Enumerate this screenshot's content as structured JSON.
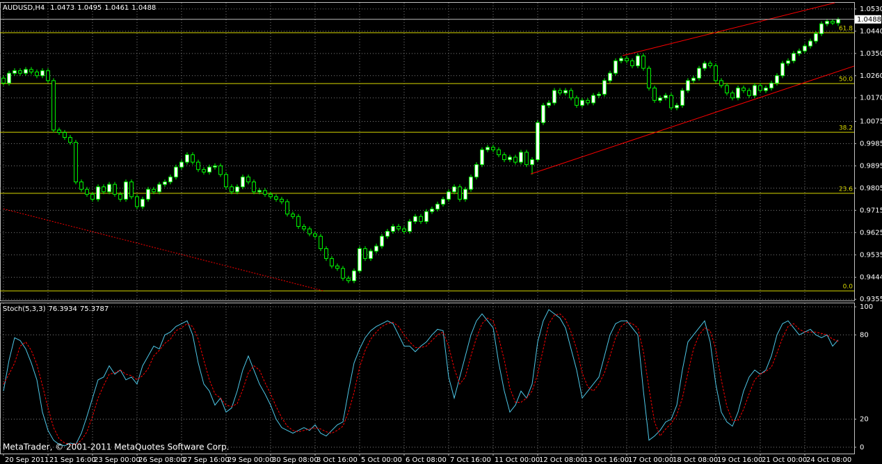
{
  "chart_data": {
    "type": "candlestick",
    "symbol": "AUDUSD,H4",
    "up_color": "#ffffff",
    "down_color": "#000000",
    "wick_color": "#00ff00",
    "grid": true,
    "xlim": [
      -0.625,
      152.875
    ],
    "xticks": [
      {
        "value": 0,
        "label": "20 Sep 2011"
      },
      {
        "value": 8,
        "label": "21 Sep 16:00"
      },
      {
        "value": 16,
        "label": "23 Sep 00:00"
      },
      {
        "value": 24,
        "label": "26 Sep 08:00"
      },
      {
        "value": 32,
        "label": "27 Sep 16:00"
      },
      {
        "value": 40,
        "label": "29 Sep 00:00"
      },
      {
        "value": 48,
        "label": "30 Sep 08:00"
      },
      {
        "value": 56,
        "label": "3 Oct 16:00"
      },
      {
        "value": 64,
        "label": "5 Oct 00:00"
      },
      {
        "value": 72,
        "label": "6 Oct 08:00"
      },
      {
        "value": 80,
        "label": "7 Oct 16:00"
      },
      {
        "value": 88,
        "label": "11 Oct 00:00"
      },
      {
        "value": 96,
        "label": "12 Oct 08:00"
      },
      {
        "value": 104,
        "label": "13 Oct 16:00"
      },
      {
        "value": 112,
        "label": "17 Oct 00:00"
      },
      {
        "value": 120,
        "label": "18 Oct 08:00"
      },
      {
        "value": 128,
        "label": "19 Oct 16:00"
      },
      {
        "value": 136,
        "label": "21 Oct 00:00"
      },
      {
        "value": 144,
        "label": "24 Oct 08:00"
      }
    ],
    "ylim": [
      0.935,
      1.0555
    ],
    "yticks": [
      {
        "value": 1.053,
        "label": "1.0530"
      },
      {
        "value": 1.044,
        "label": "1.0440"
      },
      {
        "value": 1.035,
        "label": "1.0350"
      },
      {
        "value": 1.026,
        "label": "1.0260"
      },
      {
        "value": 1.017,
        "label": "1.0170"
      },
      1.0075,
      0.9985,
      0.9895,
      0.9805,
      0.9715,
      0.9625,
      0.9535,
      0.9444,
      0.9355
    ],
    "ohlc": [
      [
        1.025,
        1.026,
        1.022,
        1.023
      ],
      [
        1.023,
        1.028,
        1.022,
        1.027
      ],
      [
        1.027,
        1.029,
        1.026,
        1.028
      ],
      [
        1.028,
        1.029,
        1.026,
        1.027
      ],
      [
        1.027,
        1.0295,
        1.026,
        1.0285
      ],
      [
        1.0285,
        1.0295,
        1.0265,
        1.0275
      ],
      [
        1.0275,
        1.0285,
        1.025,
        1.026
      ],
      [
        1.026,
        1.029,
        1.025,
        1.028
      ],
      [
        1.028,
        1.029,
        1.023,
        1.024
      ],
      [
        1.024,
        1.025,
        1.003,
        1.004
      ],
      [
        1.004,
        1.005,
        1.002,
        1.003
      ],
      [
        1.003,
        1.004,
        1.0,
        1.001
      ],
      [
        1.001,
        1.002,
        0.998,
        0.999
      ],
      [
        0.999,
        1.0,
        0.982,
        0.983
      ],
      [
        0.983,
        0.984,
        0.979,
        0.98
      ],
      [
        0.98,
        0.981,
        0.977,
        0.978
      ],
      [
        0.978,
        0.979,
        0.975,
        0.976
      ],
      [
        0.976,
        0.982,
        0.975,
        0.981
      ],
      [
        0.981,
        0.982,
        0.978,
        0.979
      ],
      [
        0.979,
        0.983,
        0.978,
        0.982
      ],
      [
        0.982,
        0.983,
        0.977,
        0.978
      ],
      [
        0.978,
        0.979,
        0.975,
        0.976
      ],
      [
        0.976,
        0.984,
        0.975,
        0.983
      ],
      [
        0.983,
        0.984,
        0.976,
        0.977
      ],
      [
        0.977,
        0.978,
        0.972,
        0.973
      ],
      [
        0.973,
        0.977,
        0.972,
        0.976
      ],
      [
        0.976,
        0.981,
        0.975,
        0.98
      ],
      [
        0.98,
        0.981,
        0.978,
        0.979
      ],
      [
        0.979,
        0.983,
        0.978,
        0.982
      ],
      [
        0.982,
        0.984,
        0.981,
        0.983
      ],
      [
        0.983,
        0.986,
        0.982,
        0.985
      ],
      [
        0.985,
        0.99,
        0.984,
        0.989
      ],
      [
        0.989,
        0.992,
        0.988,
        0.991
      ],
      [
        0.991,
        0.995,
        0.99,
        0.994
      ],
      [
        0.994,
        0.995,
        0.99,
        0.991
      ],
      [
        0.991,
        0.992,
        0.987,
        0.988
      ],
      [
        0.988,
        0.989,
        0.986,
        0.987
      ],
      [
        0.987,
        0.99,
        0.986,
        0.989
      ],
      [
        0.989,
        0.9905,
        0.988,
        0.9895
      ],
      [
        0.9895,
        0.9905,
        0.985,
        0.986
      ],
      [
        0.986,
        0.987,
        0.98,
        0.981
      ],
      [
        0.981,
        0.982,
        0.978,
        0.979
      ],
      [
        0.979,
        0.982,
        0.978,
        0.981
      ],
      [
        0.981,
        0.986,
        0.98,
        0.985
      ],
      [
        0.985,
        0.986,
        0.982,
        0.983
      ],
      [
        0.983,
        0.984,
        0.978,
        0.979
      ],
      [
        0.979,
        0.9805,
        0.978,
        0.9795
      ],
      [
        0.9795,
        0.9805,
        0.977,
        0.978
      ],
      [
        0.978,
        0.979,
        0.976,
        0.977
      ],
      [
        0.977,
        0.978,
        0.975,
        0.976
      ],
      [
        0.976,
        0.977,
        0.974,
        0.975
      ],
      [
        0.975,
        0.976,
        0.969,
        0.97
      ],
      [
        0.97,
        0.971,
        0.968,
        0.969
      ],
      [
        0.969,
        0.97,
        0.964,
        0.965
      ],
      [
        0.965,
        0.966,
        0.963,
        0.964
      ],
      [
        0.964,
        0.965,
        0.961,
        0.962
      ],
      [
        0.962,
        0.963,
        0.96,
        0.961
      ],
      [
        0.961,
        0.962,
        0.955,
        0.956
      ],
      [
        0.956,
        0.957,
        0.951,
        0.952
      ],
      [
        0.952,
        0.953,
        0.948,
        0.949
      ],
      [
        0.949,
        0.95,
        0.947,
        0.948
      ],
      [
        0.948,
        0.949,
        0.943,
        0.944
      ],
      [
        0.944,
        0.945,
        0.942,
        0.943
      ],
      [
        0.943,
        0.948,
        0.942,
        0.947
      ],
      [
        0.947,
        0.957,
        0.946,
        0.956
      ],
      [
        0.956,
        0.957,
        0.951,
        0.952
      ],
      [
        0.952,
        0.956,
        0.951,
        0.955
      ],
      [
        0.955,
        0.958,
        0.954,
        0.957
      ],
      [
        0.957,
        0.962,
        0.956,
        0.961
      ],
      [
        0.961,
        0.964,
        0.96,
        0.963
      ],
      [
        0.963,
        0.966,
        0.962,
        0.965
      ],
      [
        0.965,
        0.966,
        0.963,
        0.964
      ],
      [
        0.964,
        0.965,
        0.962,
        0.963
      ],
      [
        0.963,
        0.968,
        0.962,
        0.967
      ],
      [
        0.967,
        0.97,
        0.966,
        0.969
      ],
      [
        0.969,
        0.97,
        0.966,
        0.967
      ],
      [
        0.967,
        0.972,
        0.966,
        0.971
      ],
      [
        0.971,
        0.973,
        0.97,
        0.972
      ],
      [
        0.972,
        0.975,
        0.971,
        0.974
      ],
      [
        0.974,
        0.977,
        0.973,
        0.976
      ],
      [
        0.976,
        0.98,
        0.975,
        0.979
      ],
      [
        0.979,
        0.982,
        0.978,
        0.981
      ],
      [
        0.981,
        0.982,
        0.975,
        0.976
      ],
      [
        0.976,
        0.981,
        0.975,
        0.98
      ],
      [
        0.98,
        0.986,
        0.979,
        0.985
      ],
      [
        0.985,
        0.991,
        0.984,
        0.99
      ],
      [
        0.99,
        0.997,
        0.989,
        0.996
      ],
      [
        0.996,
        0.998,
        0.995,
        0.997
      ],
      [
        0.997,
        0.998,
        0.995,
        0.996
      ],
      [
        0.996,
        0.997,
        0.993,
        0.994
      ],
      [
        0.994,
        0.995,
        0.991,
        0.992
      ],
      [
        0.992,
        0.994,
        0.991,
        0.993
      ],
      [
        0.993,
        0.994,
        0.99,
        0.991
      ],
      [
        0.991,
        0.996,
        0.99,
        0.995
      ],
      [
        0.995,
        0.996,
        0.989,
        0.99
      ],
      [
        0.99,
        0.993,
        0.986,
        0.992
      ],
      [
        0.992,
        1.008,
        0.991,
        1.007
      ],
      [
        1.007,
        1.015,
        1.006,
        1.014
      ],
      [
        1.014,
        1.016,
        1.013,
        1.015
      ],
      [
        1.015,
        1.021,
        1.014,
        1.02
      ],
      [
        1.02,
        1.021,
        1.018,
        1.019
      ],
      [
        1.019,
        1.021,
        1.018,
        1.02
      ],
      [
        1.02,
        1.021,
        1.016,
        1.017
      ],
      [
        1.017,
        1.018,
        1.013,
        1.014
      ],
      [
        1.014,
        1.017,
        1.013,
        1.016
      ],
      [
        1.016,
        1.017,
        1.014,
        1.015
      ],
      [
        1.015,
        1.019,
        1.014,
        1.018
      ],
      [
        1.018,
        1.0195,
        1.017,
        1.0185
      ],
      [
        1.0185,
        1.025,
        1.0175,
        1.024
      ],
      [
        1.024,
        1.028,
        1.023,
        1.027
      ],
      [
        1.027,
        1.033,
        1.026,
        1.032
      ],
      [
        1.032,
        1.034,
        1.031,
        1.033
      ],
      [
        1.033,
        1.034,
        1.031,
        1.032
      ],
      [
        1.032,
        1.033,
        1.029,
        1.03
      ],
      [
        1.03,
        1.035,
        1.029,
        1.034
      ],
      [
        1.034,
        1.035,
        1.028,
        1.029
      ],
      [
        1.029,
        1.03,
        1.02,
        1.021
      ],
      [
        1.021,
        1.022,
        1.015,
        1.016
      ],
      [
        1.016,
        1.018,
        1.015,
        1.017
      ],
      [
        1.017,
        1.019,
        1.016,
        1.018
      ],
      [
        1.018,
        1.019,
        1.012,
        1.013
      ],
      [
        1.013,
        1.015,
        1.012,
        1.014
      ],
      [
        1.014,
        1.021,
        1.013,
        1.02
      ],
      [
        1.02,
        1.025,
        1.019,
        1.024
      ],
      [
        1.024,
        1.026,
        1.023,
        1.025
      ],
      [
        1.025,
        1.03,
        1.024,
        1.029
      ],
      [
        1.029,
        1.032,
        1.028,
        1.031
      ],
      [
        1.031,
        1.032,
        1.029,
        1.03
      ],
      [
        1.03,
        1.031,
        1.023,
        1.024
      ],
      [
        1.024,
        1.025,
        1.021,
        1.022
      ],
      [
        1.022,
        1.023,
        1.018,
        1.019
      ],
      [
        1.019,
        1.02,
        1.016,
        1.017
      ],
      [
        1.017,
        1.022,
        1.016,
        1.021
      ],
      [
        1.021,
        1.022,
        1.019,
        1.02
      ],
      [
        1.02,
        1.021,
        1.017,
        1.018
      ],
      [
        1.018,
        1.023,
        1.017,
        1.022
      ],
      [
        1.022,
        1.023,
        1.019,
        1.02
      ],
      [
        1.02,
        1.022,
        1.019,
        1.021
      ],
      [
        1.021,
        1.024,
        1.02,
        1.023
      ],
      [
        1.023,
        1.027,
        1.022,
        1.026
      ],
      [
        1.026,
        1.032,
        1.025,
        1.031
      ],
      [
        1.031,
        1.033,
        1.03,
        1.032
      ],
      [
        1.032,
        1.036,
        1.031,
        1.035
      ],
      [
        1.035,
        1.037,
        1.034,
        1.036
      ],
      [
        1.036,
        1.039,
        1.035,
        1.038
      ],
      [
        1.038,
        1.041,
        1.037,
        1.04
      ],
      [
        1.04,
        1.044,
        1.039,
        1.043
      ],
      [
        1.043,
        1.048,
        1.042,
        1.047
      ],
      [
        1.047,
        1.049,
        1.046,
        1.048
      ],
      [
        1.048,
        1.049,
        1.0465,
        1.0473
      ],
      [
        1.0473,
        1.0495,
        1.0461,
        1.0488
      ]
    ],
    "fib_color": "#d8d800",
    "fib_levels": [
      {
        "label": "61.8",
        "price": 1.0434
      },
      {
        "label": "50.0",
        "price": 1.0228
      },
      {
        "label": "38.2",
        "price": 1.0031
      },
      {
        "label": "23.6",
        "price": 0.9784
      },
      {
        "label": "0.0",
        "price": 0.9389
      }
    ],
    "trend_lines": [
      {
        "x": [
          111.25,
          149.4
        ],
        "y": [
          1.0341,
          1.0555
        ],
        "color": "#ff0000",
        "dashed": false
      },
      {
        "x": [
          94.75,
          152.875
        ],
        "y": [
          0.9862,
          1.0299
        ],
        "color": "#ff0000",
        "dashed": false
      },
      {
        "x": [
          0,
          57.5
        ],
        "y": [
          0.9721,
          0.9389
        ],
        "color": "#ff0000",
        "dashed": true
      }
    ],
    "indicator": {
      "type": "line",
      "title": "Stoch(5,3,3)",
      "ylim": [
        -4.5,
        102.5
      ],
      "yticks": [
        0,
        20,
        80,
        100
      ],
      "series": [
        {
          "color": "#4ec8e8",
          "dashed": false,
          "values": [
            40,
            62,
            78,
            76,
            70,
            60,
            48,
            25,
            12,
            5,
            2,
            1,
            3,
            2,
            10,
            22,
            35,
            48,
            50,
            58,
            52,
            55,
            48,
            50,
            45,
            58,
            65,
            72,
            70,
            80,
            82,
            86,
            88,
            90,
            80,
            60,
            45,
            40,
            30,
            35,
            25,
            28,
            40,
            55,
            65,
            55,
            45,
            38,
            30,
            20,
            14,
            12,
            10,
            12,
            14,
            12,
            16,
            10,
            8,
            12,
            16,
            18,
            40,
            60,
            70,
            78,
            83,
            86,
            88,
            90,
            88,
            80,
            72,
            72,
            68,
            72,
            75,
            80,
            84,
            83,
            50,
            35,
            50,
            65,
            80,
            90,
            95,
            90,
            85,
            60,
            40,
            25,
            30,
            40,
            35,
            45,
            75,
            90,
            98,
            95,
            92,
            85,
            70,
            55,
            35,
            40,
            45,
            50,
            65,
            80,
            88,
            90,
            90,
            85,
            80,
            40,
            5,
            8,
            12,
            18,
            20,
            30,
            55,
            75,
            80,
            85,
            90,
            75,
            45,
            25,
            18,
            15,
            25,
            40,
            50,
            55,
            52,
            55,
            65,
            80,
            88,
            90,
            85,
            80,
            82,
            84,
            80,
            78,
            80,
            72,
            76.3934
          ]
        },
        {
          "color": "#ff0000",
          "dashed": true,
          "values": [
            45,
            52,
            60,
            72,
            75,
            69,
            59,
            44,
            28,
            14,
            6,
            3,
            2,
            2,
            5,
            11,
            22,
            35,
            44,
            52,
            53,
            55,
            52,
            51,
            48,
            51,
            56,
            65,
            69,
            74,
            77,
            83,
            85,
            88,
            86,
            77,
            62,
            48,
            38,
            35,
            30,
            29,
            31,
            41,
            53,
            58,
            55,
            46,
            38,
            29,
            21,
            15,
            12,
            11,
            12,
            13,
            14,
            13,
            11,
            10,
            12,
            15,
            25,
            39,
            57,
            69,
            77,
            82,
            86,
            88,
            89,
            86,
            80,
            75,
            71,
            71,
            72,
            76,
            80,
            82,
            72,
            56,
            45,
            50,
            65,
            78,
            88,
            92,
            90,
            78,
            62,
            42,
            32,
            32,
            35,
            40,
            52,
            70,
            88,
            94,
            95,
            91,
            82,
            70,
            53,
            43,
            40,
            45,
            53,
            65,
            78,
            86,
            89,
            88,
            85,
            68,
            42,
            18,
            8,
            13,
            17,
            23,
            35,
            53,
            70,
            80,
            85,
            83,
            70,
            48,
            29,
            19,
            19,
            27,
            38,
            48,
            52,
            54,
            57,
            67,
            78,
            86,
            88,
            84,
            82,
            82,
            82,
            81,
            80,
            77,
            75.3787
          ]
        }
      ]
    },
    "copyright": "MetaTrader, © 2001-2011 MetaQuotes Software Corp."
  }
}
